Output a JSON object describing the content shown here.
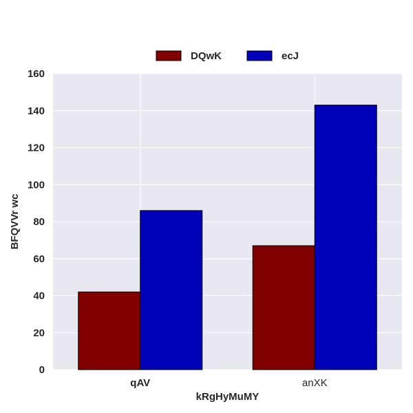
{
  "chart_data": {
    "type": "bar",
    "categories": [
      "qAV",
      "anXK"
    ],
    "category_bold": [
      true,
      false
    ],
    "series": [
      {
        "name": "DQwK",
        "values": [
          42,
          67
        ],
        "color": "#800000"
      },
      {
        "name": "ecJ",
        "values": [
          86,
          143
        ],
        "color": "#0000b8"
      }
    ],
    "xlabel": "kRgHyMuMY",
    "ylabel": "BFQVVr wc",
    "ylim": [
      0,
      160
    ],
    "yticks": [
      0,
      20,
      40,
      60,
      80,
      100,
      120,
      140,
      160
    ],
    "grid": true,
    "legend_position": "top-center",
    "background_color": "#e8e8f0",
    "grid_color": "#ffffff"
  }
}
